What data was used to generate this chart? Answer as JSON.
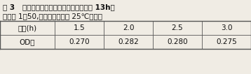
{
  "title_line1": "表 3   浸提时间和得率的关系（确酸铜处理 13h，",
  "title_line2": "料液比 1：50,丙酮乙醇混合液 25℃浸提）",
  "col_header": "时间(h)",
  "row_header": "OD値",
  "columns": [
    "1.5",
    "2.0",
    "2.5",
    "3.0"
  ],
  "values": [
    "0.270",
    "0.282",
    "0.280",
    "0.275"
  ],
  "bg_color": "#f0ece4",
  "text_color": "#111111",
  "title_fontsize": 7.5,
  "table_fontsize": 7.5,
  "line_color": "#555555"
}
